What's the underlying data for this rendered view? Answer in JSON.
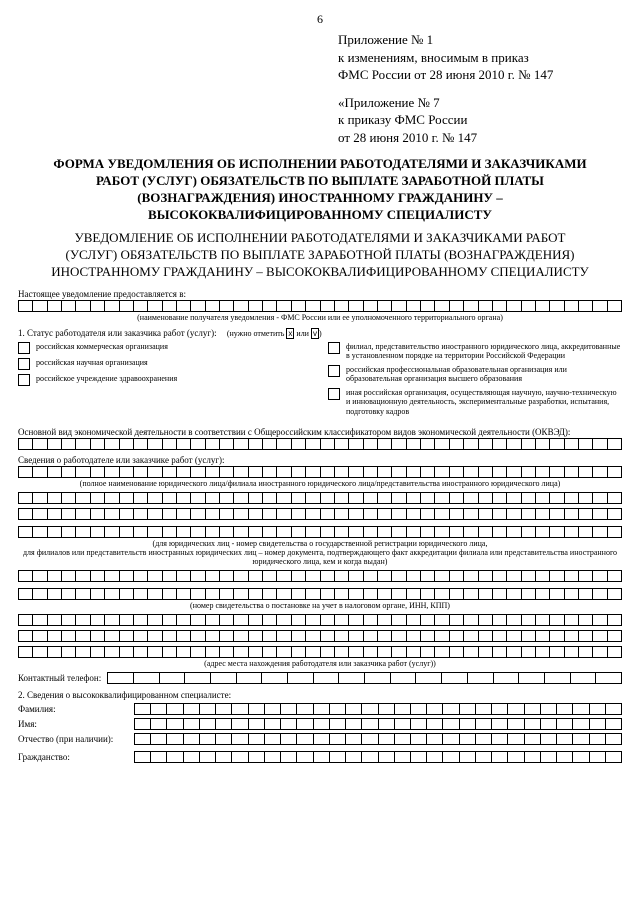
{
  "page_number": "6",
  "appendix1": {
    "l1": "Приложение № 1",
    "l2": "к изменениям, вносимым в приказ",
    "l3": "ФМС России от 28 июня 2010 г. № 147"
  },
  "appendix7": {
    "l1": "«Приложение № 7",
    "l2": "к приказу ФМС России",
    "l3": "от 28 июня 2010 г. № 147"
  },
  "title_bold": "ФОРМА\nУВЕДОМЛЕНИЯ ОБ ИСПОЛНЕНИИ РАБОТОДАТЕЛЯМИ И ЗАКАЗЧИКАМИ РАБОТ (УСЛУГ) ОБЯЗАТЕЛЬСТВ ПО ВЫПЛАТЕ ЗАРАБОТНОЙ ПЛАТЫ (ВОЗНАГРАЖДЕНИЯ) ИНОСТРАННОМУ ГРАЖДАНИНУ – ВЫСОКОКВАЛИФИЦИРОВАННОМУ СПЕЦИАЛИСТУ",
  "title_norm": "УВЕДОМЛЕНИЕ ОБ ИСПОЛНЕНИИ РАБОТОДАТЕЛЯМИ И ЗАКАЗЧИКАМИ РАБОТ (УСЛУГ) ОБЯЗАТЕЛЬСТВ ПО ВЫПЛАТЕ ЗАРАБОТНОЙ ПЛАТЫ (ВОЗНАГРАЖДЕНИЯ) ИНОСТРАННОМУ ГРАЖДАНИНУ – ВЫСОКОКВАЛИФИЦИРОВАННОМУ СПЕЦИАЛИСТУ",
  "labels": {
    "present_to": "Настоящее уведомление предоставляется в:",
    "recipient_cap": "(наименование получателя уведомления - ФМС России или ее уполномоченного территориального органа)",
    "section1": "1. Статус работодателя или заказчика работ (услуг):",
    "mark_hint_a": "(нужно отметить ",
    "mark_hint_b": " или ",
    "mark_hint_c": ")",
    "okved": "Основной вид экономической деятельности в соответствии с Общероссийским классификатором видов экономической деятельности (ОКВЭД):",
    "info_emp": "Сведения о работодателе или заказчике работ (услуг):",
    "full_name_cap": "(полное наименование юридического лица/филиала иностранного юридического лица/представительства иностранного юридического лица)",
    "legal_cap": "(для юридических лиц - номер свидетельства о государственной регистрации юридического лица,\nдля филиалов или представительств иностранных юридических лиц – номер документа, подтверждающего факт аккредитации филиала или представительства иностранного юридического лица, кем и когда выдан)",
    "tax_cap": "(номер свидетельства о постановке на учет в налоговом органе, ИНН, КПП)",
    "addr_cap": "(адрес места нахождения работодателя или заказчика работ (услуг))",
    "phone": "Контактный телефон:",
    "section2": "2. Сведения о высококвалифицированном специалисте:",
    "surname": "Фамилия:",
    "name": "Имя:",
    "patronymic": "Отчество (при наличии):",
    "citizenship": "Гражданство:"
  },
  "status_left": [
    "российская коммерческая организация",
    "российская научная организация",
    "российское учреждение здравоохранения"
  ],
  "status_right": [
    "филиал, представительство иностранного юридического лица, аккредитованные в установленном порядке на территории Российской Федерации",
    "российская профессиональная образовательная организация или образовательная организация высшего образования",
    "иная российская организация, осуществляющая научную, научно-техническую и инновационную деятельность, экспериментальные разработки, испытания, подготовку кадров"
  ],
  "grid": {
    "cells_per_row": 42,
    "cells_short": 30,
    "cells_phone": 20
  }
}
